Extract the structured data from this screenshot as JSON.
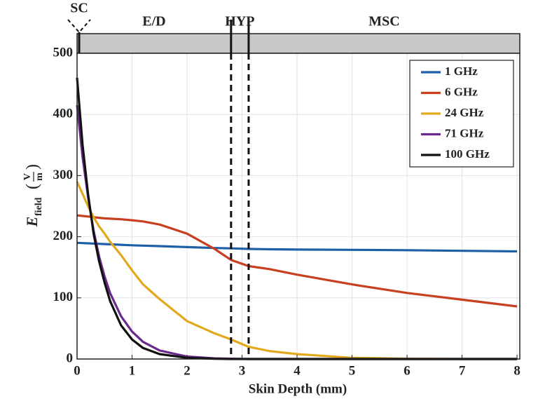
{
  "chart_data": {
    "type": "line",
    "xlabel": "Skin Depth  (mm)",
    "ylabel": {
      "symbol": "E",
      "subscript": "field",
      "unit_numerator": "V",
      "unit_denominator": "m"
    },
    "x": [
      0,
      0.1,
      0.2,
      0.3,
      0.4,
      0.5,
      0.6,
      0.8,
      1,
      1.2,
      1.5,
      2,
      2.5,
      2.8,
      3.12,
      3.5,
      4,
      5,
      6,
      7,
      8
    ],
    "series": [
      {
        "name": "1 GHz",
        "color": "#1f5fa8",
        "values": [
          190,
          189.6,
          189.2,
          188.8,
          188.4,
          188,
          187.6,
          186.8,
          186,
          185.4,
          184.6,
          183,
          181.5,
          181,
          180,
          179.5,
          179,
          178.5,
          178,
          177,
          176
        ]
      },
      {
        "name": "6 GHz",
        "color": "#c8401f",
        "values": [
          235,
          234,
          233,
          232,
          231,
          230,
          229.5,
          228.5,
          227,
          225,
          220,
          205,
          180,
          162,
          152,
          147,
          138,
          122,
          108,
          97,
          86
        ]
      },
      {
        "name": "24 GHz",
        "color": "#e3a91c",
        "values": [
          290,
          270,
          250,
          232,
          217,
          205,
          192,
          170,
          145,
          122,
          98,
          62,
          42,
          32,
          20,
          13,
          8,
          2,
          0.5,
          0,
          0
        ]
      },
      {
        "name": "71 GHz",
        "color": "#6a2a8c",
        "values": [
          415,
          330,
          265,
          210,
          168,
          135,
          108,
          70,
          45,
          28,
          14,
          4,
          1,
          0.5,
          0,
          0,
          0,
          0,
          0,
          0,
          0
        ]
      },
      {
        "name": "100 GHz",
        "color": "#111111",
        "values": [
          460,
          350,
          270,
          205,
          160,
          125,
          95,
          55,
          32,
          18,
          8,
          2,
          0.5,
          0,
          0,
          0,
          0,
          0,
          0,
          0,
          0
        ]
      }
    ],
    "xlim": [
      0,
      8.05
    ],
    "xticks": [
      0,
      1,
      2,
      3,
      4,
      5,
      6,
      7,
      8
    ],
    "ylim": [
      0,
      500
    ],
    "yticks": [
      0,
      100,
      200,
      300,
      400,
      500
    ],
    "grid": true,
    "legend": "upper right",
    "regions": [
      "SC",
      "E/D",
      "HYP",
      "MSC"
    ],
    "boundaries": [
      2.8,
      3.12
    ]
  }
}
